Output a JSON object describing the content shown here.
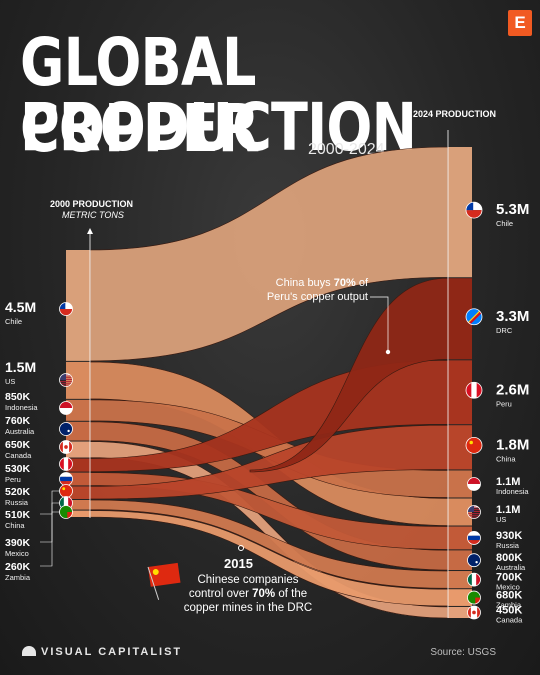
{
  "header": {
    "title_line1": "GLOBAL COPPER",
    "title_line2": "PRODUCTION",
    "subtitle": "2000-2024",
    "logo_letter": "E"
  },
  "left_axis": {
    "title": "2000 PRODUCTION",
    "unit": "METRIC TONS"
  },
  "right_axis": {
    "title": "2024 PRODUCTION"
  },
  "annotations": {
    "peru_line1_pre": "China buys ",
    "peru_line1_bold": "70%",
    "peru_line1_post": " of",
    "peru_line2": "Peru's copper output",
    "drc_year": "2015",
    "drc_line1": "Chinese companies",
    "drc_line2_pre": "control over ",
    "drc_line2_bold": "70%",
    "drc_line2_post": " of the",
    "drc_line3": "copper mines in the DRC"
  },
  "footer": {
    "brand": "VISUAL CAPITALIST",
    "source": "Source: USGS"
  },
  "chart_data": {
    "type": "sankey-ranking",
    "title": "GLOBAL COPPER PRODUCTION",
    "subtitle": "2000-2024",
    "unit": "metric tons",
    "x": [
      2000,
      2024
    ],
    "production_2000": [
      {
        "country": "Chile",
        "label": "4.5M",
        "value": 4500000,
        "flag": "chile-flag"
      },
      {
        "country": "US",
        "label": "1.5M",
        "value": 1500000,
        "flag": "us-flag"
      },
      {
        "country": "Indonesia",
        "label": "850K",
        "value": 850000,
        "flag": "indonesia-flag"
      },
      {
        "country": "Australia",
        "label": "760K",
        "value": 760000,
        "flag": "australia-flag"
      },
      {
        "country": "Canada",
        "label": "650K",
        "value": 650000,
        "flag": "canada-flag"
      },
      {
        "country": "Peru",
        "label": "530K",
        "value": 530000,
        "flag": "peru-flag"
      },
      {
        "country": "Russia",
        "label": "520K",
        "value": 520000,
        "flag": "russia-flag"
      },
      {
        "country": "China",
        "label": "510K",
        "value": 510000,
        "flag": "china-flag"
      },
      {
        "country": "Mexico",
        "label": "390K",
        "value": 390000,
        "flag": "mexico-flag"
      },
      {
        "country": "Zambia",
        "label": "260K",
        "value": 260000,
        "flag": "zambia-flag"
      }
    ],
    "production_2024": [
      {
        "country": "Chile",
        "label": "5.3M",
        "value": 5300000,
        "flag": "chile-flag"
      },
      {
        "country": "DRC",
        "label": "3.3M",
        "value": 3300000,
        "flag": "drc-flag"
      },
      {
        "country": "Peru",
        "label": "2.6M",
        "value": 2600000,
        "flag": "peru-flag"
      },
      {
        "country": "China",
        "label": "1.8M",
        "value": 1800000,
        "flag": "china-flag"
      },
      {
        "country": "Indonesia",
        "label": "1.1M",
        "value": 1100000,
        "flag": "indonesia-flag"
      },
      {
        "country": "US",
        "label": "1.1M",
        "value": 1100000,
        "flag": "us-flag"
      },
      {
        "country": "Russia",
        "label": "930K",
        "value": 930000,
        "flag": "russia-flag"
      },
      {
        "country": "Australia",
        "label": "800K",
        "value": 800000,
        "flag": "australia-flag"
      },
      {
        "country": "Mexico",
        "label": "700K",
        "value": 700000,
        "flag": "mexico-flag"
      },
      {
        "country": "Zambia",
        "label": "680K",
        "value": 680000,
        "flag": "zambia-flag"
      },
      {
        "country": "Canada",
        "label": "450K",
        "value": 450000,
        "flag": "canada-flag"
      }
    ],
    "colors": {
      "Chile": "#d9a07a",
      "US": "#d98b5e",
      "Indonesia": "#c9724a",
      "Australia": "#c66a44",
      "Canada": "#e3a07b",
      "Peru": "#a8341f",
      "Russia": "#c25a38",
      "China": "#b8452a",
      "Mexico": "#d0794f",
      "Zambia": "#e89a6c",
      "DRC": "#8f2716"
    }
  }
}
